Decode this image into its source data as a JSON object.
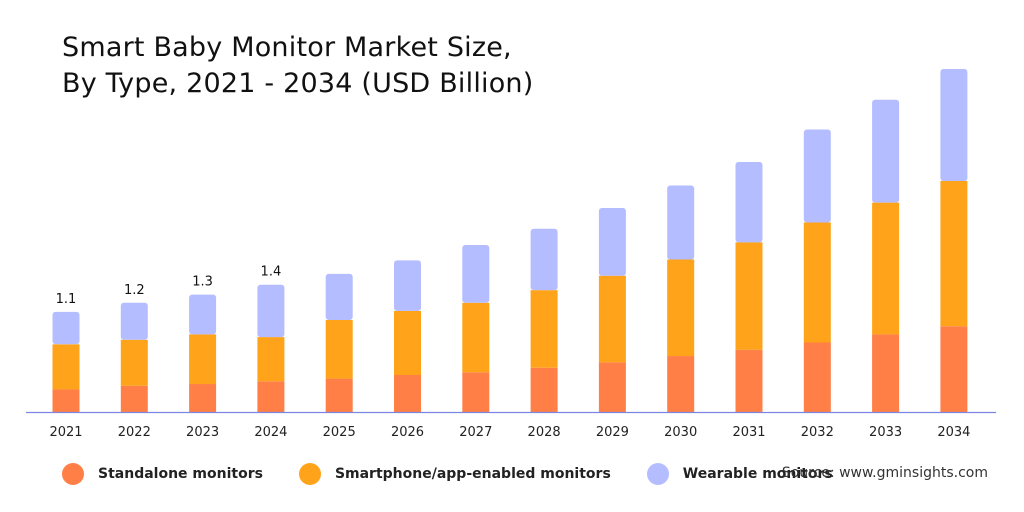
{
  "chart_data": {
    "type": "bar",
    "stacked": true,
    "title_lines": [
      "Smart Baby Monitor Market Size,",
      "By Type, 2021 - 2034 (USD Billion)"
    ],
    "xlabel": "",
    "ylabel": "",
    "categories": [
      "2021",
      "2022",
      "2023",
      "2024",
      "2025",
      "2026",
      "2027",
      "2028",
      "2029",
      "2030",
      "2031",
      "2032",
      "2033",
      "2034"
    ],
    "series": [
      {
        "name": "Standalone monitors",
        "color": "#FF7F47",
        "values": [
          0.25,
          0.29,
          0.31,
          0.34,
          0.37,
          0.41,
          0.44,
          0.49,
          0.55,
          0.62,
          0.69,
          0.77,
          0.86,
          0.95
        ]
      },
      {
        "name": "Smartphone/app-enabled monitors",
        "color": "#FFA31A",
        "values": [
          0.5,
          0.51,
          0.55,
          0.49,
          0.65,
          0.71,
          0.77,
          0.86,
          0.96,
          1.07,
          1.19,
          1.33,
          1.46,
          1.61
        ]
      },
      {
        "name": "Wearable monitors",
        "color": "#B4BDFF",
        "values": [
          0.36,
          0.41,
          0.44,
          0.58,
          0.51,
          0.56,
          0.64,
          0.68,
          0.75,
          0.82,
          0.89,
          1.03,
          1.14,
          1.24
        ]
      }
    ],
    "data_labels": [
      "1.1",
      "1.2",
      "1.3",
      "1.4",
      null,
      null,
      null,
      null,
      null,
      null,
      null,
      null,
      null,
      null
    ],
    "ylim": [
      0,
      3.9
    ],
    "grid": false,
    "legend_position": "bottom-left"
  },
  "source": "Source: www.gminsights.com"
}
